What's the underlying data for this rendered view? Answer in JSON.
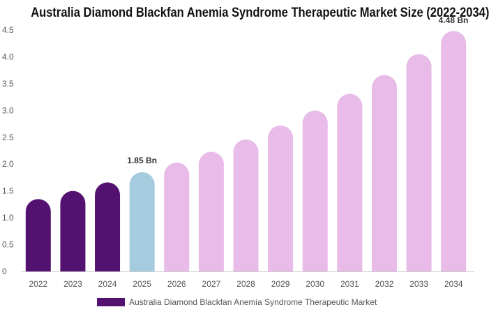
{
  "chart_data": {
    "type": "bar",
    "title": "Australia Diamond Blackfan Anemia Syndrome Therapeutic Market Size (2022-2034)",
    "categories": [
      "2022",
      "2023",
      "2024",
      "2025",
      "2026",
      "2027",
      "2028",
      "2029",
      "2030",
      "2031",
      "2032",
      "2033",
      "2034"
    ],
    "series": [
      {
        "name": "Australia Diamond Blackfan Anemia Syndrome Therapeutic Market",
        "values": [
          1.35,
          1.5,
          1.66,
          1.85,
          2.03,
          2.23,
          2.46,
          2.72,
          3.0,
          3.31,
          3.66,
          4.05,
          4.48
        ]
      }
    ],
    "ylim": [
      0,
      4.5
    ],
    "yticks": [
      "0",
      "0.5",
      "1.0",
      "1.5",
      "2.0",
      "2.5",
      "3.0",
      "3.5",
      "4.0",
      "4.5"
    ],
    "data_labels": [
      {
        "category": "2025",
        "text": "1.85 Bn"
      },
      {
        "category": "2034",
        "text": "4.48 Bn"
      }
    ],
    "colors": {
      "historical": "#53126f",
      "base_year": "#a5cbdf",
      "forecast": "#e8bbe8",
      "legend_swatch": "#53126f"
    },
    "bar_color_groups": [
      "historical",
      "historical",
      "historical",
      "base_year",
      "forecast",
      "forecast",
      "forecast",
      "forecast",
      "forecast",
      "forecast",
      "forecast",
      "forecast",
      "forecast"
    ],
    "xlabel": "",
    "ylabel": "",
    "grid": false,
    "legend_position": "bottom-left"
  }
}
